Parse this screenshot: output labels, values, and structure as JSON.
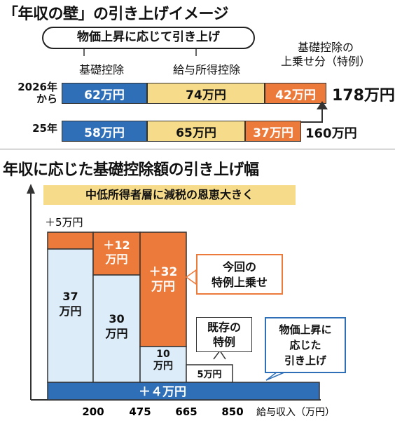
{
  "top_chart": {
    "title": "「年収の壁」の引き上げイメージ",
    "pill_label": "物価上昇に応じて引き上げ",
    "legend": {
      "basic": "基礎控除",
      "salary": "給与所得控除",
      "special": "基礎控除の\n上乗せ分（特例）"
    },
    "rows": [
      {
        "label": "2026年\nから",
        "basic": "62万円",
        "salary": "74万円",
        "special": "42万円",
        "total": "178万円"
      },
      {
        "label": "25年",
        "basic": "58万円",
        "salary": "65万円",
        "special": "37万円",
        "total": "160万円"
      }
    ]
  },
  "bottom_chart": {
    "title": "年収に応じた基礎控除額の引き上げ幅",
    "banner": "中低所得者層に減税の恩恵大きく",
    "plus5_label": "＋5万円",
    "base_label": "＋４万円",
    "callouts": {
      "this_time": "今回の\n特例上乗せ",
      "existing": "既存の\n特例",
      "inflation": "物価上昇に\n応じた\n引き上げ"
    },
    "x_axis_label": "給与収入（万円）"
  },
  "chart_data": {
    "type": "bar",
    "title": "年収に応じた基礎控除額の引き上げ幅",
    "xlabel": "給与収入（万円）",
    "x_ticks": [
      "200",
      "475",
      "665",
      "850"
    ],
    "bands": [
      {
        "to": "200",
        "existing_special": "37",
        "this_time_special": "5"
      },
      {
        "from": "200",
        "to": "475",
        "existing_special": "30",
        "this_time_special": "12"
      },
      {
        "from": "475",
        "to": "665",
        "existing_special": "10",
        "this_time_special": "32"
      },
      {
        "from": "665",
        "to": "850",
        "existing_special": "5",
        "this_time_special": "0"
      }
    ],
    "inflation_raise_all": "4",
    "bar_labels": {
      "existing": [
        "37\n万円",
        "30\n万円",
        "10\n万円",
        "5万円"
      ],
      "this_time": [
        "＋5万円",
        "＋12\n万円",
        "＋32\n万円"
      ]
    }
  },
  "colors": {
    "blue": "#2e6fb8",
    "beige": "#f6dc8a",
    "orange": "#ec7a3a",
    "light_blue": "#dcecf8",
    "white": "#ffffff"
  }
}
